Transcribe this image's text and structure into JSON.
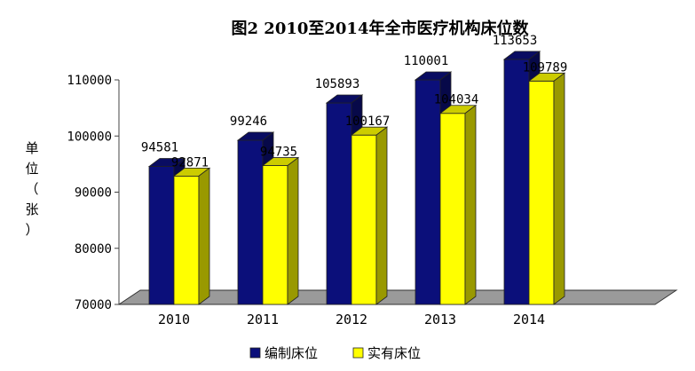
{
  "chart_data": {
    "type": "bar",
    "title": "图2  2010至2014年全市医疗机构床位数",
    "ylabel": "单位（张）",
    "categories": [
      "2010",
      "2011",
      "2012",
      "2013",
      "2014"
    ],
    "series": [
      {
        "name": "编制床位",
        "values": [
          94581,
          99246,
          105893,
          110001,
          113653
        ],
        "color": "#0b0f7a"
      },
      {
        "name": "实有床位",
        "values": [
          92871,
          94735,
          100167,
          104034,
          109789
        ],
        "color": "#ffff00"
      }
    ],
    "yticks": [
      "70000",
      "80000",
      "90000",
      "100000",
      "110000"
    ],
    "ylim": [
      70000,
      110000
    ],
    "grid": false,
    "legend": "bottom"
  }
}
